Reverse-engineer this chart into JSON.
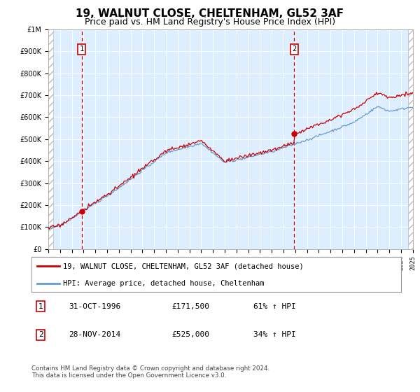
{
  "title": "19, WALNUT CLOSE, CHELTENHAM, GL52 3AF",
  "subtitle": "Price paid vs. HM Land Registry's House Price Index (HPI)",
  "legend_line1": "19, WALNUT CLOSE, CHELTENHAM, GL52 3AF (detached house)",
  "legend_line2": "HPI: Average price, detached house, Cheltenham",
  "footer": "Contains HM Land Registry data © Crown copyright and database right 2024.\nThis data is licensed under the Open Government Licence v3.0.",
  "table": [
    {
      "num": "1",
      "date": "31-OCT-1996",
      "price": "£171,500",
      "hpi": "61% ↑ HPI"
    },
    {
      "num": "2",
      "date": "28-NOV-2014",
      "price": "£525,000",
      "hpi": "34% ↑ HPI"
    }
  ],
  "marker1_year": 1996.83,
  "marker2_year": 2014.91,
  "marker1_price": 171500,
  "marker2_price": 525000,
  "ylim": [
    0,
    1000000
  ],
  "xlim_start": 1994,
  "xlim_end": 2025,
  "red_color": "#cc0000",
  "blue_color": "#6699cc",
  "hatch_color": "#bbbbbb",
  "bg_color": "#ddeeff",
  "grid_color": "#ffffff",
  "title_fontsize": 11,
  "subtitle_fontsize": 9
}
